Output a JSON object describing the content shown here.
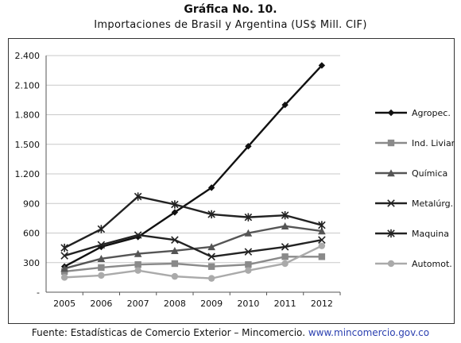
{
  "header": {
    "title": "Gráfica No. 10.",
    "subtitle": "Importaciones de Brasil y Argentina  (US$ Mill. CIF)"
  },
  "footer": {
    "source_text": "Fuente: Estadísticas de Comercio Exterior – Mincomercio.",
    "url": "www.mincomercio.gov.co"
  },
  "chart_data": {
    "type": "line",
    "title": "Gráfica No. 10.",
    "subtitle": "Importaciones de Brasil y Argentina  (US$ Mill. CIF)",
    "x": [
      "2005",
      "2006",
      "2007",
      "2008",
      "2009",
      "2010",
      "2011",
      "2012"
    ],
    "y_ticks": [
      "-",
      "300",
      "600",
      "900",
      "1.200",
      "1.500",
      "1.800",
      "2.100",
      "2.400"
    ],
    "ylim": [
      0,
      2400
    ],
    "grid": true,
    "legend_position": "right",
    "series": [
      {
        "name": "Agropec.",
        "marker": "diamond",
        "color": "#111111",
        "values": [
          260,
          460,
          560,
          810,
          1060,
          1480,
          1900,
          2300
        ]
      },
      {
        "name": "Ind. Liviana",
        "marker": "square",
        "color": "#8a8a8a",
        "values": [
          210,
          250,
          280,
          290,
          260,
          280,
          360,
          360
        ]
      },
      {
        "name": "Química",
        "marker": "triangle",
        "color": "#555555",
        "values": [
          240,
          340,
          390,
          420,
          460,
          600,
          670,
          620
        ]
      },
      {
        "name": "Metalúrg.",
        "marker": "x",
        "color": "#222222",
        "values": [
          370,
          480,
          580,
          530,
          360,
          410,
          460,
          530
        ]
      },
      {
        "name": "Maquina",
        "marker": "star",
        "color": "#222222",
        "values": [
          450,
          640,
          970,
          890,
          790,
          760,
          780,
          680
        ]
      },
      {
        "name": "Automot.",
        "marker": "circle",
        "color": "#aaaaaa",
        "values": [
          150,
          170,
          220,
          160,
          140,
          220,
          290,
          470
        ]
      }
    ]
  }
}
